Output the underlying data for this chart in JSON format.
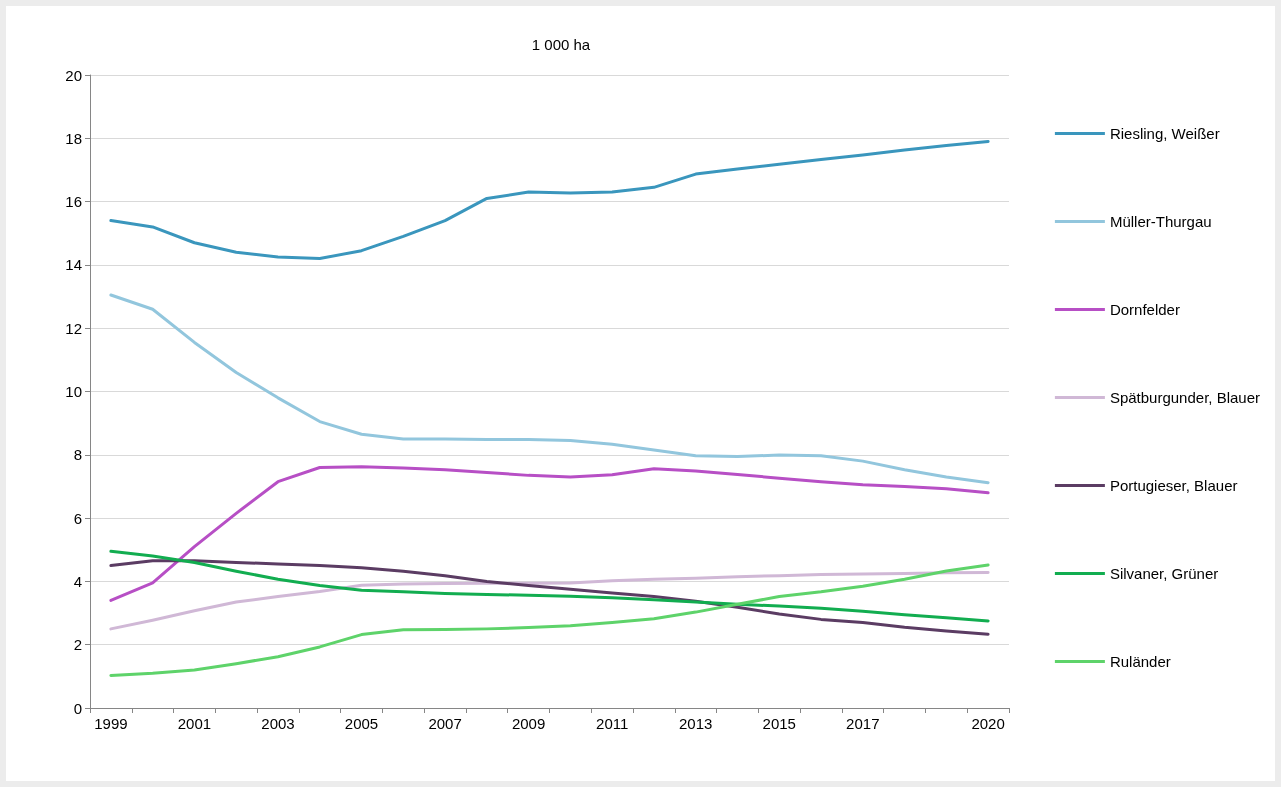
{
  "chart_data": {
    "type": "line",
    "title": "1 000 ha",
    "categories": [
      "1999",
      null,
      "2001",
      null,
      "2003",
      null,
      "2005",
      null,
      "2007",
      null,
      "2009",
      null,
      "2011",
      null,
      "2013",
      null,
      "2015",
      null,
      "2017",
      null,
      null,
      "2020"
    ],
    "ylim": [
      0,
      20
    ],
    "yticks": [
      0,
      2,
      4,
      6,
      8,
      10,
      12,
      14,
      16,
      18,
      20
    ],
    "grid": "y",
    "legend": "right",
    "marker": "none",
    "line_style": "solid",
    "series": [
      {
        "name": "Riesling, Weißer",
        "color": "#3a96bd",
        "values": [
          15.4,
          15.2,
          14.7,
          14.4,
          14.25,
          14.2,
          14.45,
          14.9,
          15.4,
          16.1,
          16.3,
          16.27,
          16.3,
          16.45,
          16.87,
          17.03,
          17.18,
          17.33,
          17.47,
          17.63,
          17.77,
          17.9
        ]
      },
      {
        "name": "Müller-Thurgau",
        "color": "#92c6dd",
        "values": [
          13.05,
          12.6,
          11.55,
          10.6,
          9.8,
          9.05,
          8.65,
          8.5,
          8.5,
          8.48,
          8.48,
          8.45,
          8.33,
          8.15,
          7.97,
          7.95,
          7.99,
          7.97,
          7.8,
          7.53,
          7.3,
          7.12
        ]
      },
      {
        "name": "Dornfelder",
        "color": "#b74fc5",
        "values": [
          3.4,
          3.95,
          5.1,
          6.15,
          7.15,
          7.6,
          7.62,
          7.58,
          7.53,
          7.44,
          7.35,
          7.3,
          7.37,
          7.56,
          7.49,
          7.38,
          7.26,
          7.15,
          7.05,
          7.0,
          6.93,
          6.8
        ]
      },
      {
        "name": "Spätburgunder, Blauer",
        "color": "#d0b8d6",
        "values": [
          2.5,
          2.77,
          3.07,
          3.35,
          3.52,
          3.68,
          3.88,
          3.92,
          3.93,
          3.94,
          3.94,
          3.95,
          4.02,
          4.07,
          4.1,
          4.15,
          4.18,
          4.22,
          4.23,
          4.25,
          4.27,
          4.28
        ]
      },
      {
        "name": "Portugieser, Blauer",
        "color": "#5b3c63",
        "values": [
          4.5,
          4.65,
          4.65,
          4.6,
          4.55,
          4.5,
          4.43,
          4.32,
          4.18,
          4.0,
          3.87,
          3.75,
          3.63,
          3.52,
          3.37,
          3.18,
          2.97,
          2.8,
          2.7,
          2.55,
          2.43,
          2.33
        ]
      },
      {
        "name": "Silvaner, Grüner",
        "color": "#12ad50",
        "values": [
          4.95,
          4.8,
          4.6,
          4.32,
          4.07,
          3.87,
          3.72,
          3.67,
          3.62,
          3.59,
          3.56,
          3.53,
          3.48,
          3.42,
          3.35,
          3.28,
          3.22,
          3.15,
          3.06,
          2.95,
          2.85,
          2.75
        ]
      },
      {
        "name": "Ruländer",
        "color": "#5ed36a",
        "values": [
          1.03,
          1.1,
          1.2,
          1.4,
          1.62,
          1.93,
          2.32,
          2.47,
          2.48,
          2.5,
          2.54,
          2.6,
          2.7,
          2.82,
          3.03,
          3.28,
          3.52,
          3.67,
          3.85,
          4.07,
          4.33,
          4.52
        ]
      }
    ]
  }
}
